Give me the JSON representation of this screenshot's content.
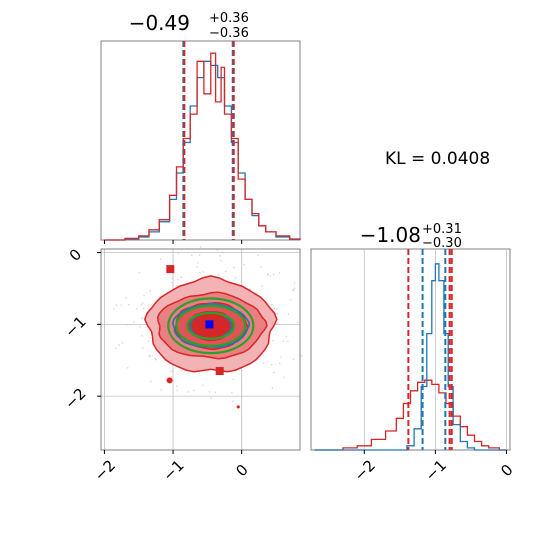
{
  "chart_data": {
    "type": "corner",
    "kl_label": "KL = 0.0408",
    "colors": {
      "blue": "#1f77b4",
      "red": "#d62728",
      "green": "#2ca02c",
      "grid": "#bfbfbf",
      "axis": "#808080"
    },
    "params": [
      {
        "median": "−0.49",
        "plus": "+0.36",
        "minus": "−0.36",
        "range": [
          -2.05,
          0.85
        ],
        "ticks": [
          -2,
          -1,
          0
        ],
        "tick_labels": [
          "−2",
          "−1",
          "0"
        ]
      },
      {
        "median": "−1.08",
        "plus": "+0.31",
        "minus": "−0.30",
        "range": [
          -2.75,
          0.05
        ],
        "ticks": [
          -2,
          -1,
          0
        ],
        "tick_labels": [
          "−2",
          "−1",
          "0"
        ]
      }
    ],
    "hist1": {
      "vlines_blue": [
        -0.85,
        -0.13
      ],
      "vlines_red": [
        -0.85,
        -0.13
      ],
      "blue": [
        [
          -2.0,
          0
        ],
        [
          -1.7,
          0.005
        ],
        [
          -1.5,
          0.015
        ],
        [
          -1.35,
          0.04
        ],
        [
          -1.2,
          0.09
        ],
        [
          -1.05,
          0.2
        ],
        [
          -0.95,
          0.33
        ],
        [
          -0.85,
          0.48
        ],
        [
          -0.75,
          0.66
        ],
        [
          -0.65,
          0.8
        ],
        [
          -0.55,
          0.88
        ],
        [
          -0.45,
          0.86
        ],
        [
          -0.35,
          0.8
        ],
        [
          -0.25,
          0.66
        ],
        [
          -0.15,
          0.48
        ],
        [
          -0.05,
          0.33
        ],
        [
          0.05,
          0.2
        ],
        [
          0.15,
          0.12
        ],
        [
          0.25,
          0.07
        ],
        [
          0.35,
          0.04
        ],
        [
          0.5,
          0.015
        ],
        [
          0.7,
          0.003
        ],
        [
          0.85,
          0
        ]
      ],
      "red": [
        [
          -2.0,
          0
        ],
        [
          -1.7,
          0.008
        ],
        [
          -1.5,
          0.02
        ],
        [
          -1.35,
          0.05
        ],
        [
          -1.2,
          0.1
        ],
        [
          -1.05,
          0.22
        ],
        [
          -0.95,
          0.36
        ],
        [
          -0.85,
          0.5
        ],
        [
          -0.75,
          0.62
        ],
        [
          -0.65,
          0.88
        ],
        [
          -0.55,
          0.72
        ],
        [
          -0.45,
          0.92
        ],
        [
          -0.38,
          0.68
        ],
        [
          -0.3,
          0.85
        ],
        [
          -0.25,
          0.62
        ],
        [
          -0.15,
          0.5
        ],
        [
          -0.05,
          0.3
        ],
        [
          0.05,
          0.2
        ],
        [
          0.15,
          0.13
        ],
        [
          0.25,
          0.07
        ],
        [
          0.35,
          0.04
        ],
        [
          0.5,
          0.02
        ],
        [
          0.7,
          0.005
        ],
        [
          0.85,
          0
        ]
      ]
    },
    "hist2": {
      "vlines_blue": [
        -1.18,
        -0.86
      ],
      "vlines_red": [
        -1.38,
        -0.8,
        -0.77
      ],
      "blue": [
        [
          -2.7,
          0
        ],
        [
          -1.5,
          0
        ],
        [
          -1.4,
          0.02
        ],
        [
          -1.3,
          0.1
        ],
        [
          -1.2,
          0.3
        ],
        [
          -1.12,
          0.55
        ],
        [
          -1.05,
          0.8
        ],
        [
          -1.0,
          0.88
        ],
        [
          -0.95,
          0.8
        ],
        [
          -0.88,
          0.55
        ],
        [
          -0.82,
          0.3
        ],
        [
          -0.75,
          0.12
        ],
        [
          -0.65,
          0.04
        ],
        [
          -0.55,
          0.01
        ],
        [
          -0.45,
          0
        ],
        [
          0.0,
          0
        ]
      ],
      "red": [
        [
          -2.7,
          0
        ],
        [
          -2.3,
          0.01
        ],
        [
          -2.1,
          0.02
        ],
        [
          -1.9,
          0.05
        ],
        [
          -1.7,
          0.09
        ],
        [
          -1.55,
          0.15
        ],
        [
          -1.45,
          0.22
        ],
        [
          -1.35,
          0.28
        ],
        [
          -1.25,
          0.32
        ],
        [
          -1.15,
          0.33
        ],
        [
          -1.05,
          0.31
        ],
        [
          -0.95,
          0.27
        ],
        [
          -0.85,
          0.22
        ],
        [
          -0.75,
          0.16
        ],
        [
          -0.65,
          0.11
        ],
        [
          -0.55,
          0.07
        ],
        [
          -0.45,
          0.04
        ],
        [
          -0.35,
          0.02
        ],
        [
          -0.25,
          0.01
        ],
        [
          -0.1,
          0
        ],
        [
          0.0,
          0
        ]
      ]
    },
    "scatter2d": {
      "center": [
        -0.45,
        -1.02
      ],
      "red_contours": [
        [
          0.92,
          0.65
        ],
        [
          0.78,
          0.45
        ],
        [
          0.52,
          0.32
        ],
        [
          0.32,
          0.2
        ]
      ],
      "green_contours": [
        [
          0.62,
          0.38
        ],
        [
          0.5,
          0.28
        ],
        [
          0.34,
          0.18
        ]
      ],
      "blue_contours": [
        [
          0.55,
          0.3
        ],
        [
          0.3,
          0.18
        ]
      ],
      "blue_marker": [
        -0.47,
        -1.0
      ],
      "red_markers": [
        [
          -1.04,
          -0.23
        ],
        [
          -0.44,
          -1.08
        ],
        [
          -0.32,
          -1.65
        ]
      ]
    }
  }
}
